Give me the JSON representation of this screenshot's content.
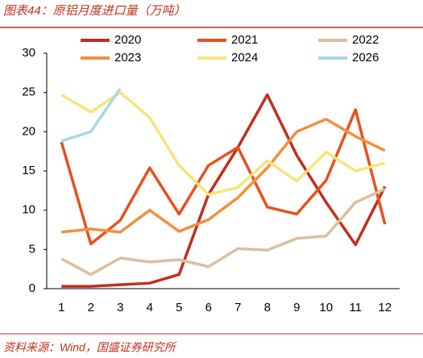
{
  "chart_data": {
    "type": "line",
    "title": "图表44：原铝月度进口量（万吨）",
    "source": "资料来源：Wind，国盛证券研究所",
    "categories": [
      "1",
      "2",
      "3",
      "4",
      "5",
      "6",
      "7",
      "8",
      "9",
      "10",
      "11",
      "12"
    ],
    "series": [
      {
        "name": "2020",
        "color": "#c0301a",
        "values": [
          0.3,
          0.3,
          0.5,
          0.7,
          1.8,
          12,
          18,
          24.7,
          17,
          11,
          5.6,
          13
        ]
      },
      {
        "name": "2021",
        "color": "#e8501e",
        "values": [
          18.7,
          5.7,
          8.7,
          15.4,
          9.5,
          15.7,
          18,
          10.4,
          9.5,
          13.8,
          22.8,
          8.2
        ]
      },
      {
        "name": "2022",
        "color": "#d9c0a0",
        "values": [
          3.8,
          1.8,
          3.9,
          3.4,
          3.7,
          2.8,
          5.1,
          4.9,
          6.4,
          6.7,
          11,
          12.7
        ]
      },
      {
        "name": "2023",
        "color": "#f09040",
        "values": [
          7.2,
          7.6,
          7.2,
          10,
          7.3,
          8.8,
          11.6,
          15.4,
          20,
          21.6,
          19.4,
          17.6
        ]
      },
      {
        "name": "2024",
        "color": "#f8e47c",
        "values": [
          24.7,
          22.5,
          25,
          21.8,
          15.7,
          12,
          12.9,
          16.3,
          13.7,
          17.4,
          15,
          16
        ]
      },
      {
        "name": "2026",
        "color": "#a8d8e8",
        "values": [
          18.8,
          20,
          25.5,
          null,
          null,
          null,
          null,
          null,
          null,
          null,
          null,
          null
        ]
      }
    ],
    "ylim": [
      0,
      30
    ],
    "yticks": [
      0,
      5,
      10,
      15,
      20,
      25,
      30
    ]
  }
}
